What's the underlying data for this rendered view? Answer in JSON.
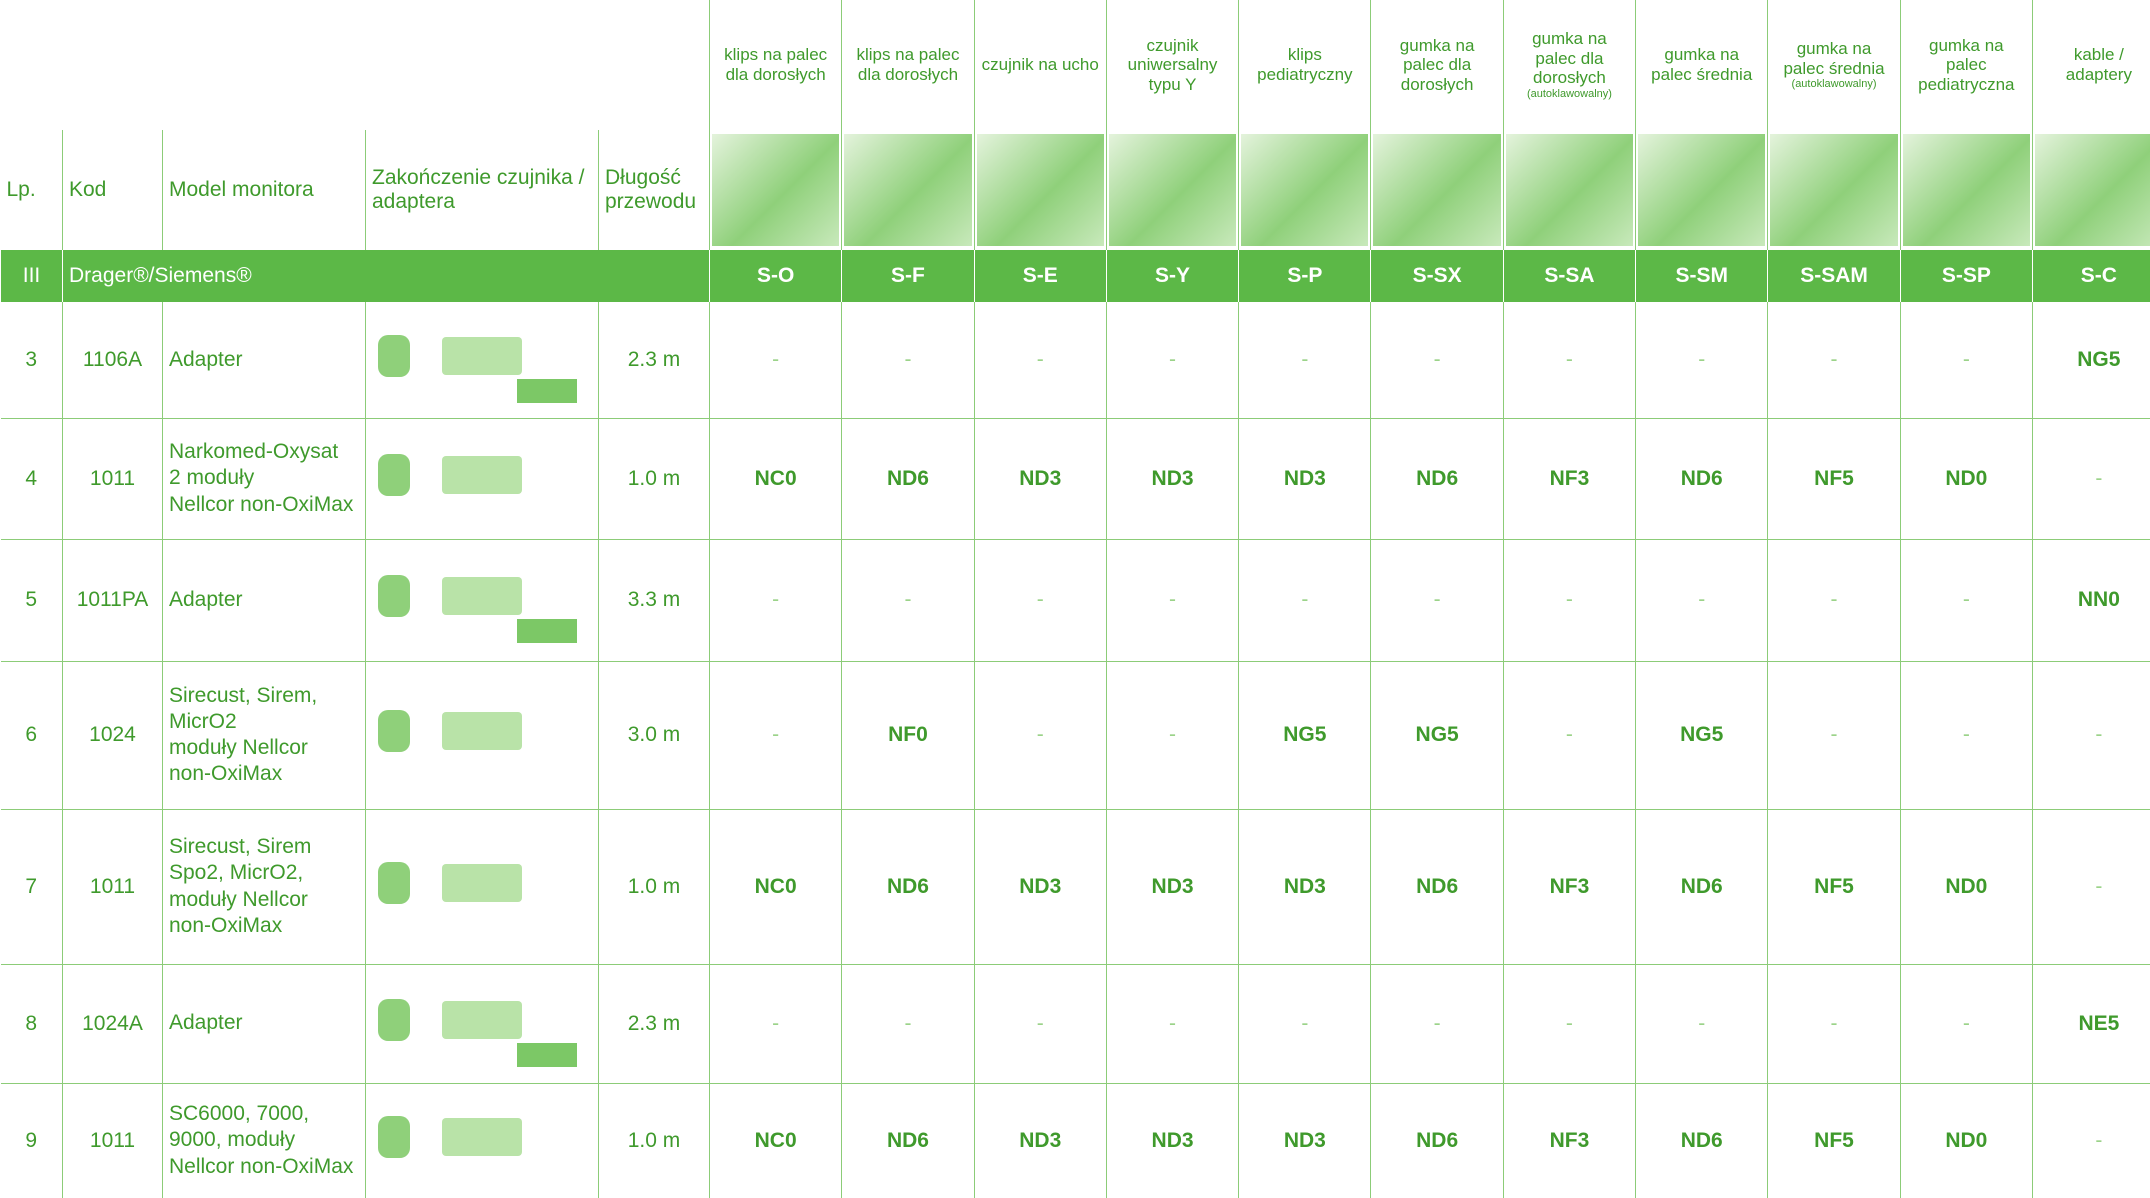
{
  "header": {
    "columns": [
      "Lp.",
      "Kod",
      "Model monitora",
      "Zakończenie czujnika / adaptera",
      "Długość przewodu"
    ]
  },
  "sensors": [
    {
      "name": "klips na palec dla dorosłych",
      "code": "S-O"
    },
    {
      "name": "klips na palec dla dorosłych",
      "code": "S-F"
    },
    {
      "name": "czujnik na ucho",
      "code": "S-E"
    },
    {
      "name": "czujnik uniwersalny typu Y",
      "code": "S-Y"
    },
    {
      "name": "klips pediatryczny",
      "code": "S-P"
    },
    {
      "name": "gumka na palec dla dorosłych",
      "code": "S-SX"
    },
    {
      "name": "gumka na palec dla dorosłych",
      "note": "(autoklawowalny)",
      "code": "S-SA"
    },
    {
      "name": "gumka na palec średnia",
      "code": "S-SM"
    },
    {
      "name": "gumka na palec średnia",
      "note": "(autoklawowalny)",
      "code": "S-SAM"
    },
    {
      "name": "gumka na palec pediatryczna",
      "code": "S-SP"
    },
    {
      "name": "kable / adaptery",
      "code": "S-C"
    }
  ],
  "section": {
    "number": "III",
    "title": "Drager®/Siemens®"
  },
  "rows": [
    {
      "lp": "3",
      "kod": "1106A",
      "model": "Adapter",
      "length": "2.3 m",
      "codes": [
        "-",
        "-",
        "-",
        "-",
        "-",
        "-",
        "-",
        "-",
        "-",
        "-",
        "NG5"
      ]
    },
    {
      "lp": "4",
      "kod": "1011",
      "model": "Narkomed-Oxysat\n2 moduły\nNellcor non-OxiMax",
      "length": "1.0 m",
      "codes": [
        "NC0",
        "ND6",
        "ND3",
        "ND3",
        "ND3",
        "ND6",
        "NF3",
        "ND6",
        "NF5",
        "ND0",
        "-"
      ]
    },
    {
      "lp": "5",
      "kod": "1011PA",
      "model": "Adapter",
      "length": "3.3 m",
      "codes": [
        "-",
        "-",
        "-",
        "-",
        "-",
        "-",
        "-",
        "-",
        "-",
        "-",
        "NN0"
      ]
    },
    {
      "lp": "6",
      "kod": "1024",
      "model": "Sirecust, Sirem,\nMicrO2\nmoduły Nellcor\nnon-OxiMax",
      "length": "3.0 m",
      "codes": [
        "-",
        "NF0",
        "-",
        "-",
        "NG5",
        "NG5",
        "-",
        "NG5",
        "-",
        "-",
        "-"
      ]
    },
    {
      "lp": "7",
      "kod": "1011",
      "model": "Sirecust, Sirem\nSpo2, MicrO2,\nmoduły Nellcor\nnon-OxiMax",
      "length": "1.0 m",
      "codes": [
        "NC0",
        "ND6",
        "ND3",
        "ND3",
        "ND3",
        "ND6",
        "NF3",
        "ND6",
        "NF5",
        "ND0",
        "-"
      ]
    },
    {
      "lp": "8",
      "kod": "1024A",
      "model": "Adapter",
      "length": "2.3 m",
      "codes": [
        "-",
        "-",
        "-",
        "-",
        "-",
        "-",
        "-",
        "-",
        "-",
        "-",
        "NE5"
      ]
    },
    {
      "lp": "9",
      "kod": "1011",
      "model": "SC6000, 7000,\n9000, moduły\nNellcor non-OxiMax",
      "length": "1.0 m",
      "codes": [
        "NC0",
        "ND6",
        "ND3",
        "ND3",
        "ND3",
        "ND6",
        "NF3",
        "ND6",
        "NF5",
        "ND0",
        "-"
      ]
    }
  ]
}
